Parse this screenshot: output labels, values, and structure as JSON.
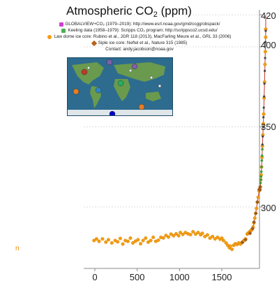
{
  "chart_data": {
    "type": "scatter",
    "title_main": "Atmospheric CO",
    "title_sub": "2",
    "title_unit": "(ppm)",
    "legend": [
      {
        "label": "GLOBALVIEW+CO₂ (1979–2019): http://www.esrl.noaa.gov/gmd/ccgg/obspack/",
        "color": "#d040d0"
      },
      {
        "label": "Keeling data (1958–1979): Scripps CO₂ program; http://scrippsco2.ucsd.edu/",
        "color": "#4caf50"
      },
      {
        "label": "Law dome ice core:  Rubino et al., JGR 118 (2013), MacFarling Meure et al., GRL 33 (2006)",
        "color": "#f39c12"
      },
      {
        "label": "Siple ice core:  Neftel et al., Nature 315 (1985)",
        "color": "#b5651d"
      }
    ],
    "contact": "Contact: andy.jacobson@noaa.gov",
    "left_label": "n",
    "x_ticks": [
      0,
      500,
      1000,
      1500
    ],
    "y_ticks": [
      300,
      350,
      400,
      420
    ],
    "xlim": [
      -100,
      2020
    ],
    "ylim": [
      255,
      420
    ],
    "series": [
      {
        "key": "law_dome",
        "color": "#f39c12",
        "points": [
          [
            -10,
            279
          ],
          [
            20,
            280
          ],
          [
            50,
            278.5
          ],
          [
            90,
            280
          ],
          [
            130,
            278
          ],
          [
            160,
            279.5
          ],
          [
            200,
            277.5
          ],
          [
            240,
            279
          ],
          [
            270,
            278.2
          ],
          [
            300,
            280.3
          ],
          [
            330,
            276.8
          ],
          [
            360,
            279
          ],
          [
            390,
            278.5
          ],
          [
            420,
            280.5
          ],
          [
            450,
            277.5
          ],
          [
            480,
            278.6
          ],
          [
            510,
            279.5
          ],
          [
            540,
            277
          ],
          [
            570,
            279
          ],
          [
            600,
            280.5
          ],
          [
            630,
            278
          ],
          [
            660,
            279
          ],
          [
            690,
            281
          ],
          [
            720,
            278.5
          ],
          [
            750,
            279.2
          ],
          [
            780,
            281
          ],
          [
            810,
            280.6
          ],
          [
            840,
            282.2
          ],
          [
            870,
            281.2
          ],
          [
            900,
            283
          ],
          [
            930,
            282
          ],
          [
            960,
            283.2
          ],
          [
            990,
            282
          ],
          [
            1010,
            284
          ],
          [
            1040,
            282.8
          ],
          [
            1070,
            284
          ],
          [
            1100,
            283.2
          ],
          [
            1130,
            282.7
          ],
          [
            1160,
            284.5
          ],
          [
            1190,
            283
          ],
          [
            1220,
            284
          ],
          [
            1250,
            282.6
          ],
          [
            1270,
            283.5
          ],
          [
            1300,
            281.5
          ],
          [
            1330,
            282.5
          ],
          [
            1360,
            280.5
          ],
          [
            1390,
            281.5
          ],
          [
            1420,
            280
          ],
          [
            1450,
            281
          ],
          [
            1480,
            279.8
          ],
          [
            1500,
            280.5
          ],
          [
            1520,
            279
          ],
          [
            1550,
            277.5
          ],
          [
            1570,
            276
          ],
          [
            1590,
            274.5
          ],
          [
            1600,
            275.5
          ],
          [
            1620,
            273.5
          ],
          [
            1640,
            276
          ],
          [
            1660,
            277
          ],
          [
            1680,
            276.5
          ],
          [
            1700,
            277.5
          ],
          [
            1720,
            276.8
          ],
          [
            1740,
            278
          ],
          [
            1760,
            279
          ],
          [
            1780,
            280
          ],
          [
            1800,
            283
          ],
          [
            1810,
            283.5
          ],
          [
            1820,
            284
          ],
          [
            1830,
            284.5
          ],
          [
            1840,
            285
          ],
          [
            1850,
            285.5
          ],
          [
            1860,
            286
          ],
          [
            1870,
            287.5
          ],
          [
            1880,
            290
          ],
          [
            1890,
            293
          ],
          [
            1900,
            296
          ],
          [
            1910,
            299
          ],
          [
            1920,
            303
          ],
          [
            1930,
            306
          ],
          [
            1940,
            310
          ],
          [
            1950,
            311
          ],
          [
            1955,
            312.5
          ],
          [
            1960,
            317
          ],
          [
            1965,
            320
          ],
          [
            1970,
            325
          ],
          [
            1975,
            331
          ],
          [
            1980,
            338
          ],
          [
            1985,
            345
          ],
          [
            1990,
            352
          ],
          [
            1995,
            358
          ],
          [
            2000,
            368
          ],
          [
            2005,
            378
          ],
          [
            2010,
            389
          ],
          [
            2014,
            397
          ],
          [
            2018,
            406
          ],
          [
            2019,
            411
          ]
        ]
      },
      {
        "key": "keeling",
        "color": "#3a9d3a",
        "points": [
          [
            1958,
            315
          ],
          [
            1961,
            317
          ],
          [
            1964,
            319
          ],
          [
            1967,
            322
          ],
          [
            1970,
            325
          ],
          [
            1973,
            329
          ],
          [
            1976,
            332
          ],
          [
            1979,
            336
          ]
        ]
      },
      {
        "key": "globalview",
        "color": "#444444",
        "points": [
          [
            1980,
            339
          ],
          [
            1984,
            344
          ],
          [
            1988,
            350
          ],
          [
            1992,
            356
          ],
          [
            1996,
            362
          ],
          [
            2000,
            369
          ],
          [
            2004,
            377
          ],
          [
            2008,
            385
          ],
          [
            2012,
            393
          ],
          [
            2016,
            403
          ],
          [
            2019,
            410
          ]
        ]
      },
      {
        "key": "siple",
        "color": "#9c5a1c",
        "points": [
          [
            1744,
            277.8
          ],
          [
            1781,
            279.5
          ],
          [
            1834,
            283.5
          ],
          [
            1863,
            286.5
          ],
          [
            1880,
            290.5
          ],
          [
            1903,
            296
          ],
          [
            1920,
            303
          ],
          [
            1942,
            311
          ],
          [
            1950,
            310.5
          ],
          [
            1953,
            312.5
          ]
        ]
      }
    ],
    "map_markers": [
      {
        "color": "#c0392b"
      },
      {
        "color": "#e67e22"
      },
      {
        "color": "#e67e22"
      },
      {
        "color": "#7f5fa8"
      },
      {
        "color": "#7f5fa8"
      },
      {
        "color": "#2e86c1"
      },
      {
        "color": "#27ae60"
      },
      {
        "color": "#0000cc"
      },
      {
        "color": "#ecf0f1"
      },
      {
        "color": "#ecf0f1"
      },
      {
        "color": "#ecf0f1"
      },
      {
        "color": "#ecf0f1"
      }
    ],
    "colors": {
      "axis": "#888888",
      "gridline": "#dddddd",
      "envelope": "#c0392b",
      "map_ocean": "#2d6b8f",
      "map_land": "#6a9a4d"
    }
  }
}
